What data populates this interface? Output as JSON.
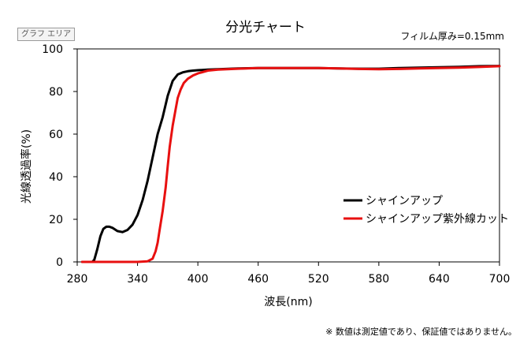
{
  "area_tag": "グラフ エリア",
  "footnote": "※ 数値は測定値であり、保証値ではありません。",
  "chart_data": {
    "type": "line",
    "title": "分光チャート",
    "subtitle": "フィルム厚み=0.15mm",
    "xlabel": "波長(nm)",
    "ylabel": "光線透過率(%)",
    "xlim": [
      280,
      700
    ],
    "ylim": [
      0,
      100
    ],
    "xticks": [
      280,
      340,
      400,
      460,
      520,
      580,
      640,
      700
    ],
    "yticks": [
      0,
      20,
      40,
      60,
      80,
      100
    ],
    "grid": false,
    "legend_position": "lower-right",
    "series": [
      {
        "name": "シャインアップ",
        "color": "#000000",
        "x": [
          285,
          295,
          297,
          300,
          303,
          306,
          309,
          312,
          315,
          320,
          325,
          330,
          335,
          340,
          345,
          350,
          355,
          360,
          365,
          370,
          375,
          380,
          385,
          390,
          395,
          400,
          410,
          420,
          440,
          460,
          480,
          500,
          520,
          540,
          560,
          580,
          600,
          620,
          640,
          660,
          680,
          700
        ],
        "y": [
          0,
          0,
          1,
          6,
          12,
          15.5,
          16.5,
          16.5,
          16,
          14.5,
          14,
          15,
          17.5,
          22,
          29,
          38,
          49,
          60,
          68,
          78,
          85,
          88,
          89,
          89.5,
          89.8,
          90,
          90.3,
          90.5,
          90.8,
          91,
          91,
          91,
          91,
          90.8,
          90.7,
          90.7,
          91,
          91.2,
          91.4,
          91.6,
          91.9,
          92
        ]
      },
      {
        "name": "シャインアップ紫外線カット",
        "color": "#e81010",
        "x": [
          285,
          300,
          320,
          340,
          350,
          355,
          358,
          360,
          362,
          365,
          368,
          370,
          372,
          375,
          378,
          380,
          383,
          386,
          390,
          395,
          400,
          410,
          420,
          440,
          460,
          480,
          500,
          520,
          540,
          560,
          580,
          600,
          620,
          640,
          660,
          680,
          700
        ],
        "y": [
          0,
          0,
          0,
          0,
          0.3,
          1.5,
          5,
          9,
          15,
          24,
          35,
          45,
          54,
          64,
          72,
          77,
          81,
          84,
          86,
          87.5,
          88.5,
          89.8,
          90.3,
          90.7,
          91,
          91,
          91,
          91,
          90.8,
          90.6,
          90.5,
          90.6,
          90.8,
          91,
          91.2,
          91.5,
          91.9
        ]
      }
    ]
  }
}
